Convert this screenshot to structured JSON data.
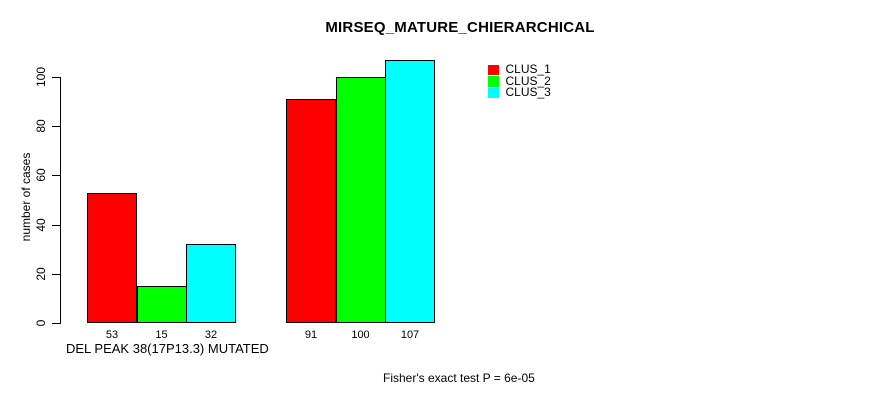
{
  "figure": {
    "background": "#ffffff",
    "text_color": "#000000"
  },
  "chart_data": {
    "type": "bar",
    "title": "MIRSEQ_MATURE_CHIERARCHICAL",
    "categories": [
      "DEL PEAK 38(17P13.3) MUTATED",
      ""
    ],
    "series": [
      {
        "name": "CLUS_1",
        "color": "#FF0000",
        "values": [
          53,
          91
        ]
      },
      {
        "name": "CLUS_2",
        "color": "#00FF00",
        "values": [
          15,
          100
        ]
      },
      {
        "name": "CLUS_3",
        "color": "#00FFFF",
        "values": [
          32,
          107
        ]
      }
    ],
    "bar_value_labels_shown": true,
    "xlabel": "DEL PEAK 38(17P13.3) MUTATED",
    "ylabel": "number of cases",
    "ylim": [
      0,
      107
    ],
    "yticks": [
      0,
      20,
      40,
      60,
      80,
      100
    ],
    "grid": false,
    "legend_position": "top-right-of-plot",
    "annotation": "Fisher's exact test P = 6e-05"
  }
}
